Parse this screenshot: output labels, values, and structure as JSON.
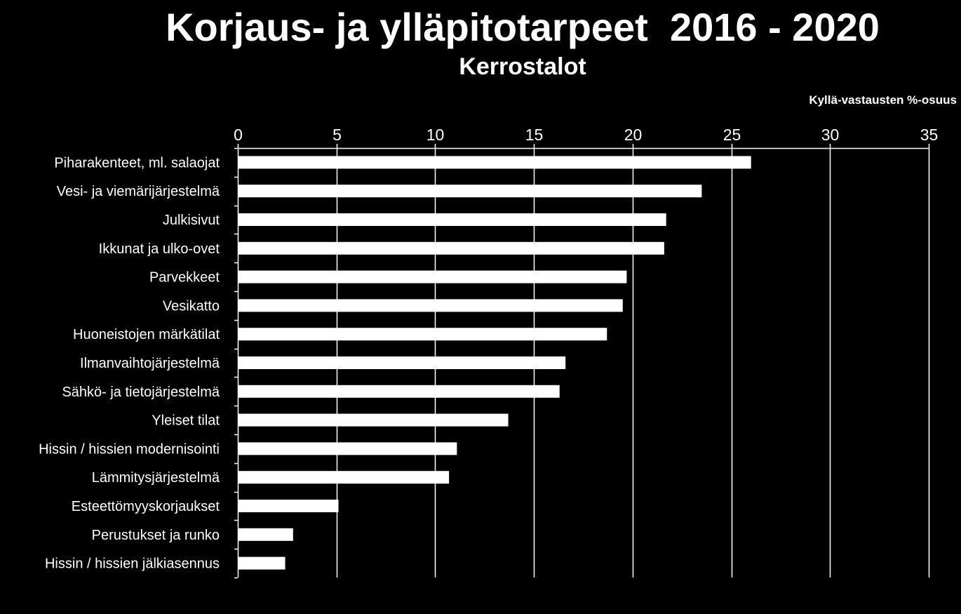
{
  "chart_data": {
    "type": "bar",
    "orientation": "horizontal",
    "title": "Korjaus- ja ylläpitotarpeet  2016 - 2020",
    "subtitle": "Kerrostalot",
    "xlabel": "Kyllä-vastausten %-osuus",
    "ylabel": "",
    "xlim": [
      0,
      35
    ],
    "x_ticks": [
      0,
      5,
      10,
      15,
      20,
      25,
      30,
      35
    ],
    "grid": "vertical",
    "legend": "none",
    "categories": [
      "Piharakenteet, ml. salaojat",
      "Vesi- ja viemärijärjestelmä",
      "Julkisivut",
      "Ikkunat ja ulko-ovet",
      "Parvekkeet",
      "Vesikatto",
      "Huoneistojen märkätilat",
      "Ilmanvaihtojärjestelmä",
      "Sähkö- ja tietojärjestelmä",
      "Yleiset tilat",
      "Hissin / hissien modernisointi",
      "Lämmitysjärjestelmä",
      "Esteettömyyskorjaukset",
      "Perustukset ja runko",
      "Hissin / hissien jälkiasennus"
    ],
    "values": [
      26.0,
      23.5,
      21.7,
      21.6,
      19.7,
      19.5,
      18.7,
      16.6,
      16.3,
      13.7,
      11.1,
      10.7,
      5.1,
      2.8,
      2.4
    ],
    "colors": {
      "background": "#000000",
      "bar": "#ffffff",
      "text": "#ffffff",
      "grid": "#ffffff"
    }
  }
}
